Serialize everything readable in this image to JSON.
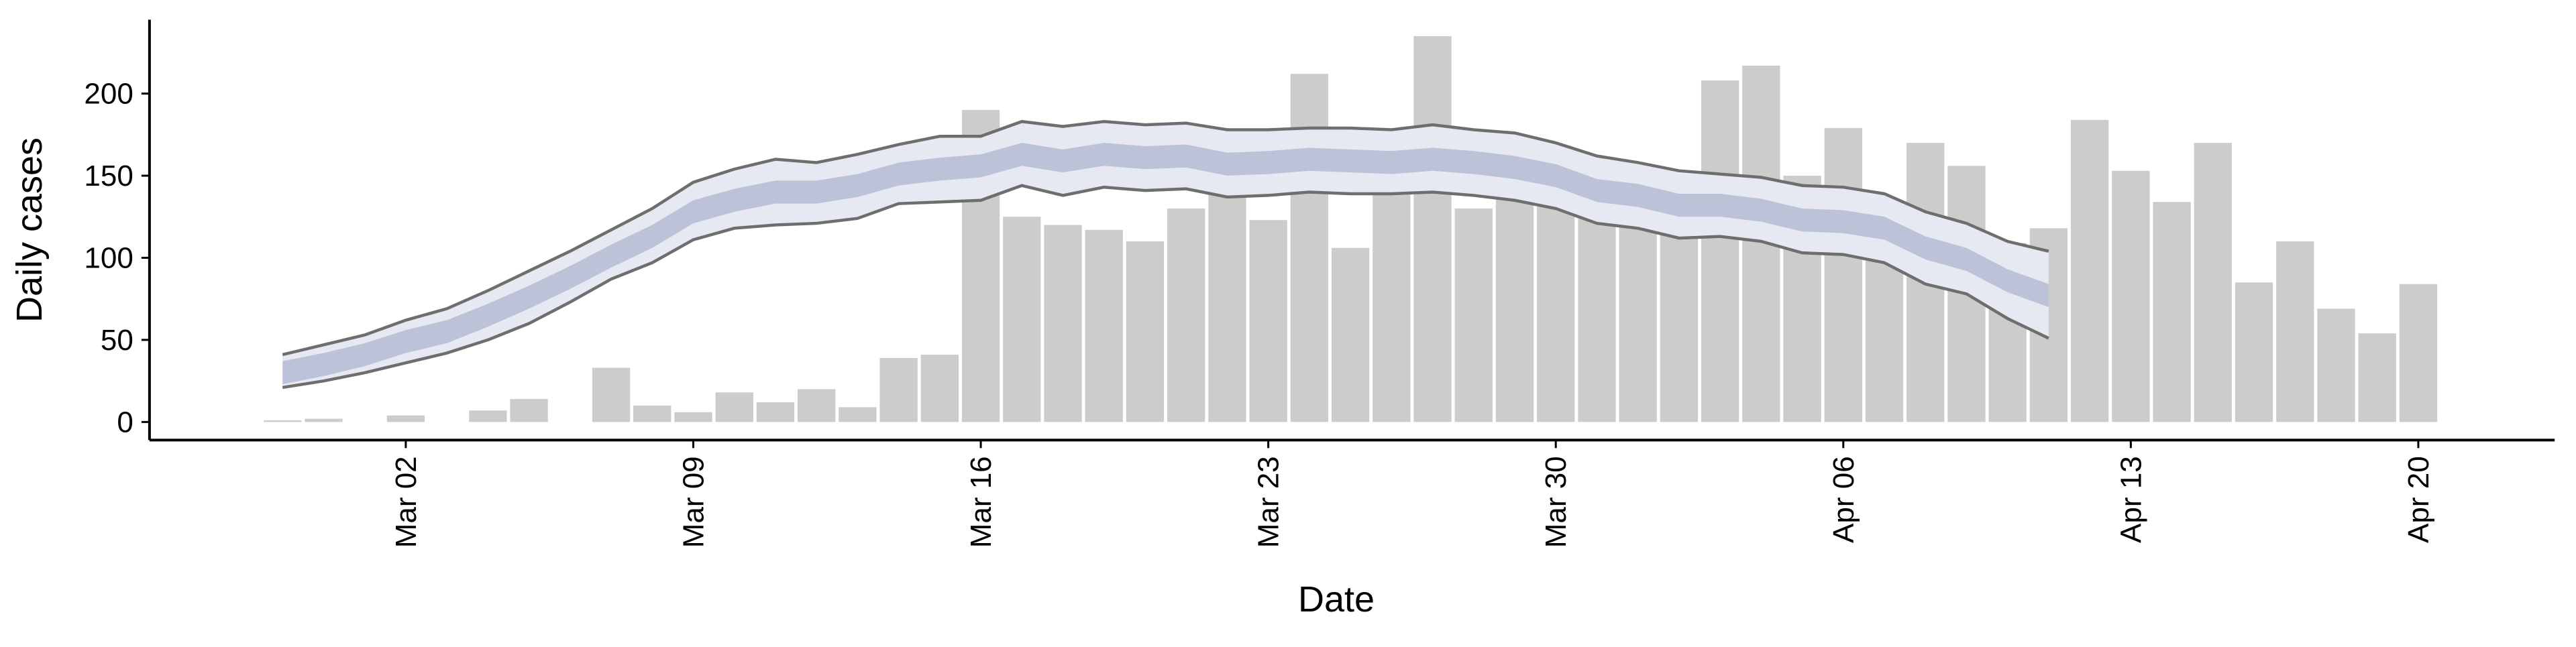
{
  "chart_data": {
    "type": "bar",
    "x_label": "Date",
    "y_label": "Daily cases",
    "x": [
      "Feb 28",
      "Feb 29",
      "Mar 01",
      "Mar 02",
      "Mar 03",
      "Mar 04",
      "Mar 05",
      "Mar 06",
      "Mar 07",
      "Mar 08",
      "Mar 09",
      "Mar 10",
      "Mar 11",
      "Mar 12",
      "Mar 13",
      "Mar 14",
      "Mar 15",
      "Mar 16",
      "Mar 17",
      "Mar 18",
      "Mar 19",
      "Mar 20",
      "Mar 21",
      "Mar 22",
      "Mar 23",
      "Mar 24",
      "Mar 25",
      "Mar 26",
      "Mar 27",
      "Mar 28",
      "Mar 29",
      "Mar 30",
      "Mar 31",
      "Apr 01",
      "Apr 02",
      "Apr 03",
      "Apr 04",
      "Apr 05",
      "Apr 06",
      "Apr 07",
      "Apr 08",
      "Apr 09",
      "Apr 10",
      "Apr 11",
      "Apr 12",
      "Apr 13",
      "Apr 14",
      "Apr 15",
      "Apr 16",
      "Apr 17",
      "Apr 18",
      "Apr 19",
      "Apr 20"
    ],
    "values": [
      1,
      2,
      0,
      4,
      0,
      7,
      14,
      0,
      33,
      10,
      6,
      18,
      12,
      20,
      9,
      39,
      41,
      190,
      125,
      120,
      117,
      110,
      130,
      153,
      123,
      212,
      106,
      172,
      235,
      130,
      160,
      150,
      157,
      141,
      143,
      208,
      217,
      150,
      179,
      131,
      170,
      156,
      109,
      118,
      184,
      153,
      134,
      170,
      85,
      110,
      69,
      54,
      84
    ],
    "color": "#cccccc",
    "band_outer": {
      "color": "#e6e9f2",
      "line_color": "#6e6e6e",
      "upper": [
        41,
        47,
        53,
        62,
        69,
        80,
        92,
        104,
        117,
        130,
        146,
        154,
        160,
        158,
        163,
        169,
        174,
        174,
        183,
        180,
        183,
        181,
        182,
        178,
        178,
        179,
        179,
        178,
        181,
        178,
        176,
        170,
        162,
        158,
        153,
        151,
        149,
        144,
        143,
        139,
        128,
        121,
        110,
        104,
        null,
        null,
        null,
        null,
        null,
        null,
        null,
        null,
        null
      ],
      "lower": [
        21,
        25,
        30,
        36,
        42,
        50,
        60,
        73,
        87,
        97,
        111,
        118,
        120,
        121,
        124,
        133,
        134,
        135,
        144,
        138,
        143,
        141,
        142,
        137,
        138,
        140,
        139,
        139,
        140,
        138,
        135,
        130,
        121,
        118,
        112,
        113,
        110,
        103,
        102,
        97,
        84,
        78,
        63,
        51,
        null,
        null,
        null,
        null,
        null,
        null,
        null,
        null,
        null
      ]
    },
    "band_inner": {
      "color": "#bcc3d8",
      "upper": [
        37,
        42,
        48,
        56,
        62,
        72,
        83,
        95,
        108,
        120,
        135,
        142,
        147,
        147,
        151,
        158,
        161,
        163,
        170,
        166,
        170,
        168,
        169,
        164,
        165,
        167,
        166,
        165,
        167,
        165,
        162,
        157,
        148,
        145,
        139,
        139,
        136,
        130,
        129,
        125,
        113,
        106,
        93,
        84,
        null,
        null,
        null,
        null,
        null,
        null,
        null,
        null,
        null
      ],
      "lower": [
        23,
        28,
        34,
        42,
        48,
        58,
        69,
        81,
        94,
        106,
        121,
        128,
        133,
        133,
        137,
        144,
        147,
        149,
        156,
        152,
        156,
        154,
        155,
        150,
        151,
        153,
        152,
        151,
        153,
        151,
        148,
        143,
        134,
        131,
        125,
        125,
        122,
        116,
        115,
        111,
        99,
        92,
        79,
        70,
        null,
        null,
        null,
        null,
        null,
        null,
        null,
        null,
        null
      ]
    },
    "ylim": [
      -11,
      245
    ],
    "yticks": [
      0,
      50,
      100,
      150,
      200
    ],
    "xticks": [
      "Mar 02",
      "Mar 09",
      "Mar 16",
      "Mar 23",
      "Mar 30",
      "Apr 06",
      "Apr 13",
      "Apr 20"
    ],
    "grid": false
  }
}
